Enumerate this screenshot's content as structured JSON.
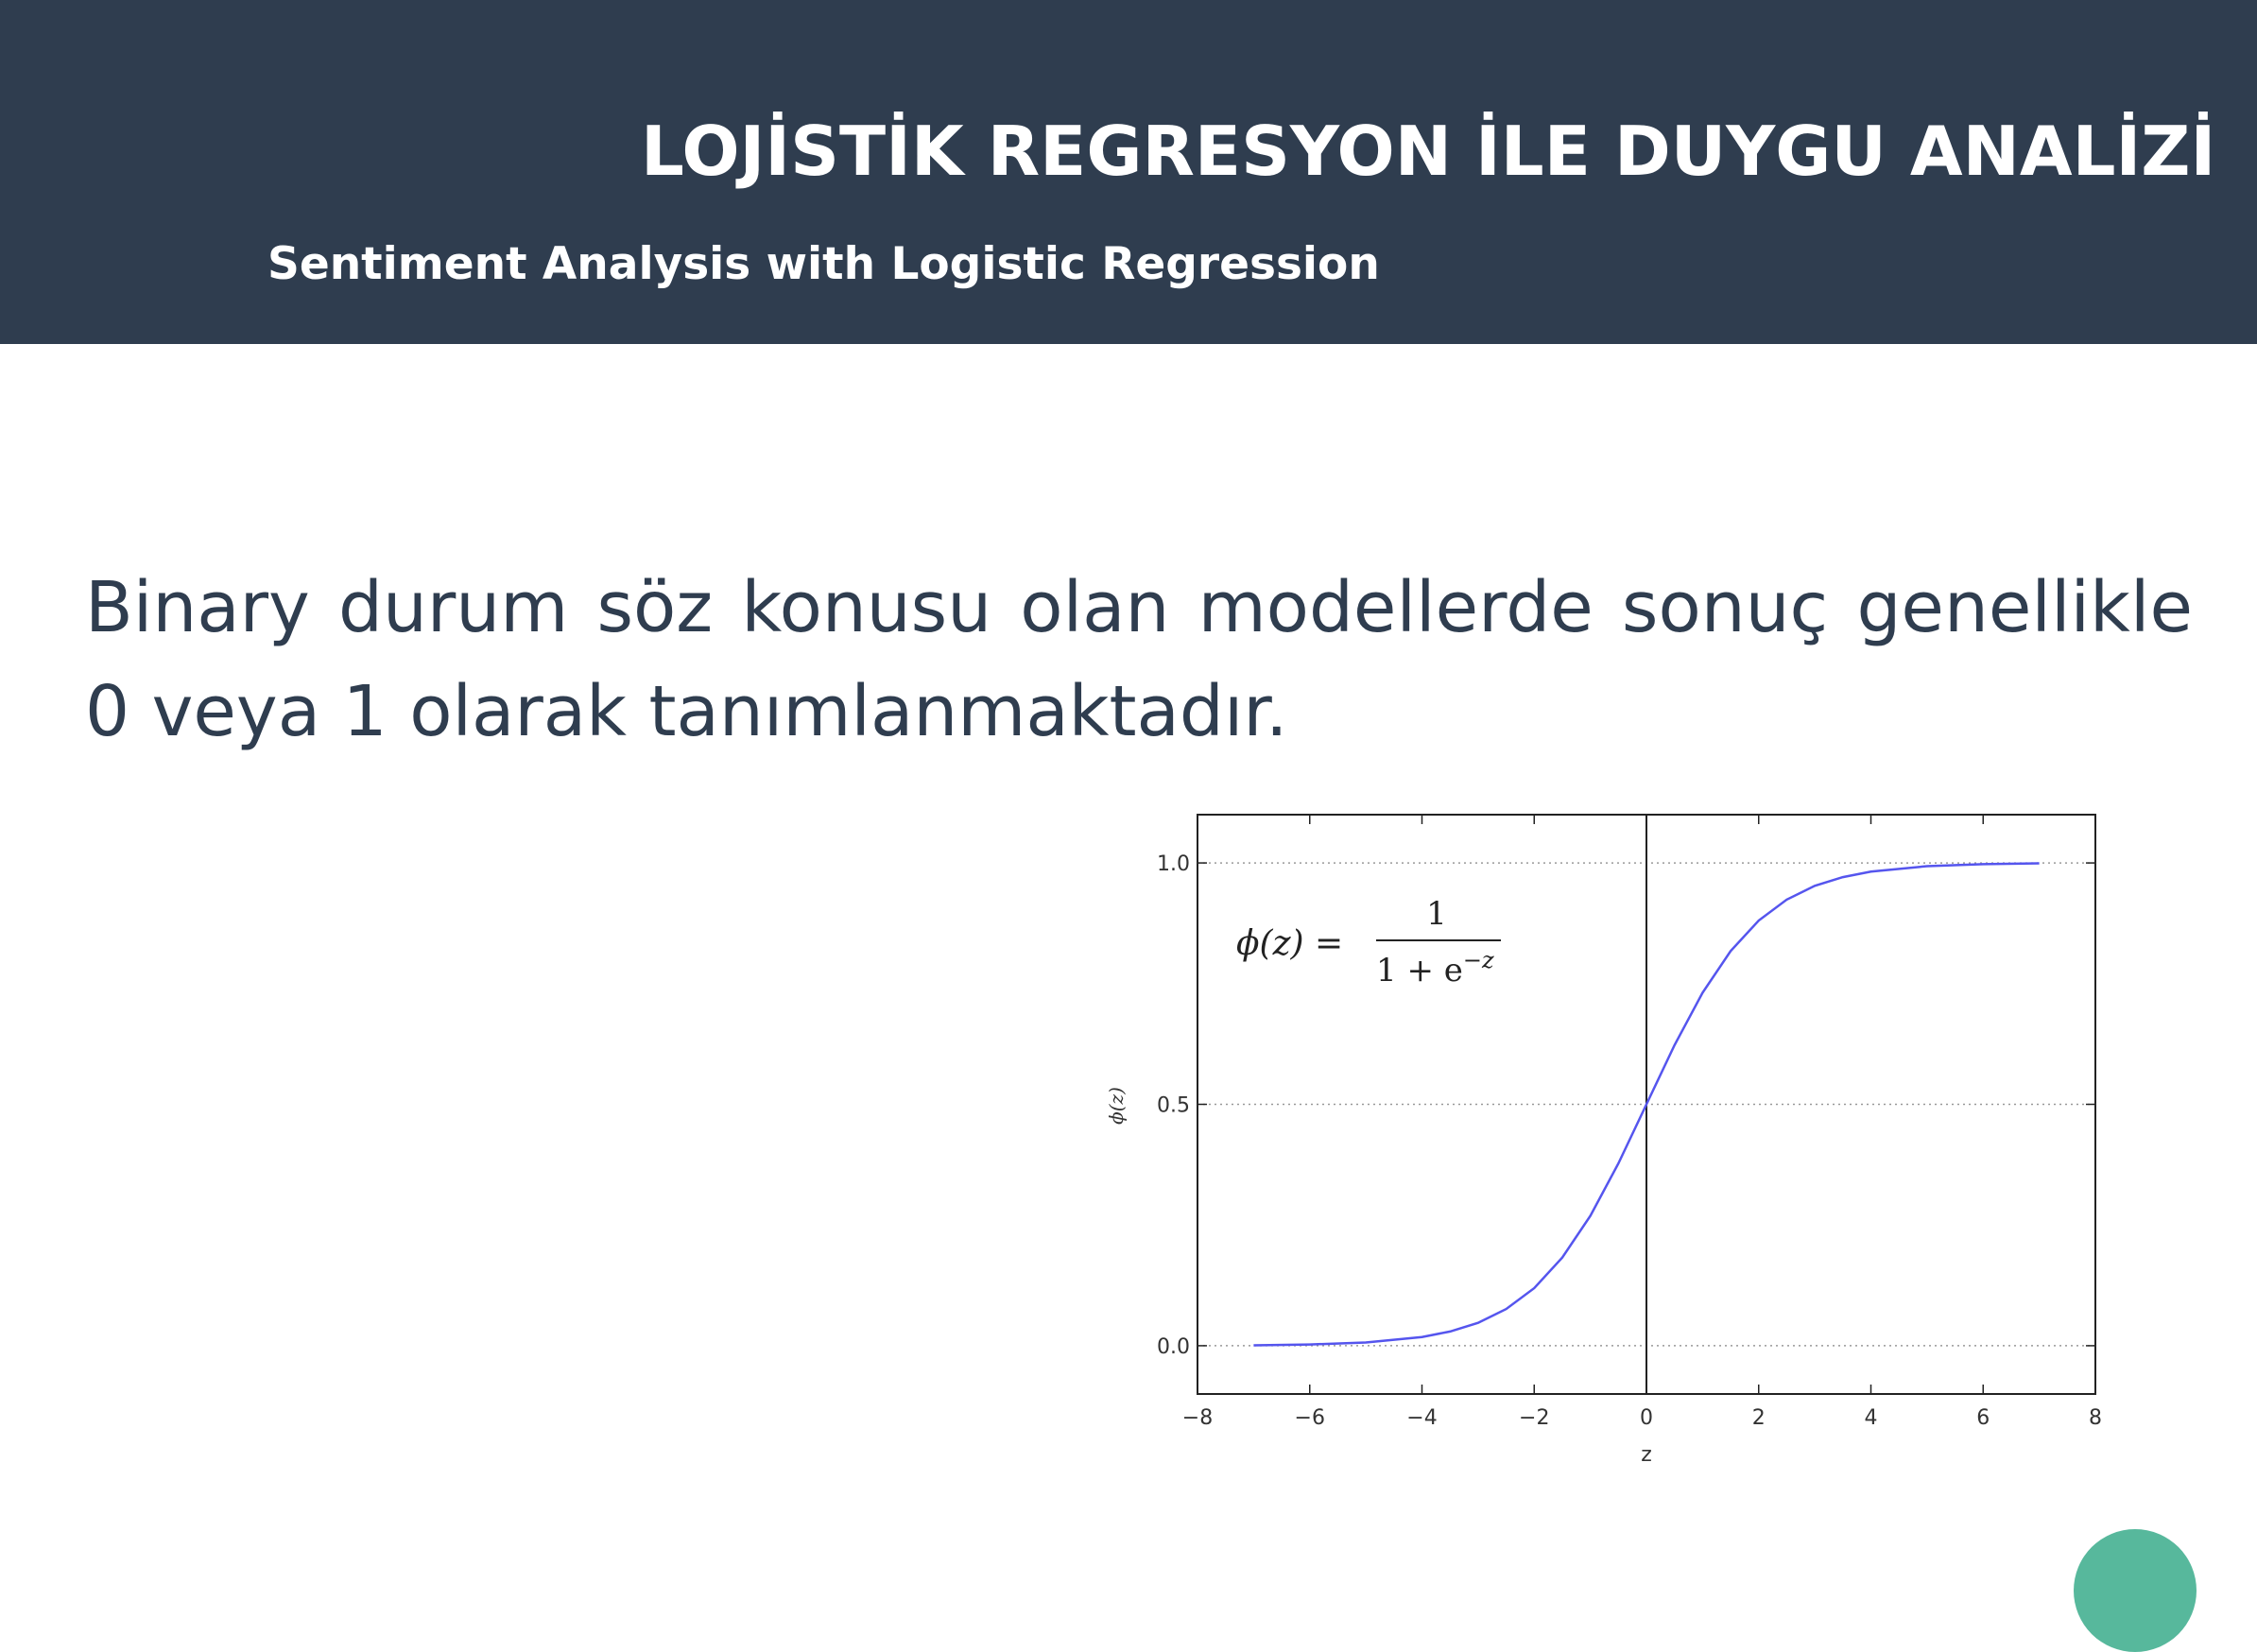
{
  "header": {
    "title": "LOJİSTİK REGRESYON İLE DUYGU ANALİZİ",
    "subtitle": "Sentiment Analysis with Logistic Regression"
  },
  "body": {
    "text": "Binary durum söz konusu olan modellerde sonuç genellikle 0 veya 1 olarak tanımlanmaktadır."
  },
  "colors": {
    "header_bg": "#2f3d4f",
    "text": "#2f3d4f",
    "curve": "#5555ee",
    "accent_circle": "#57b89c"
  },
  "chart_data": {
    "type": "line",
    "function": "sigmoid",
    "series": [
      {
        "x": [
          -7,
          -6,
          -5,
          -4,
          -3.5,
          -3,
          -2.5,
          -2,
          -1.5,
          -1,
          -0.5,
          0,
          0.5,
          1,
          1.5,
          2,
          2.5,
          3,
          3.5,
          4,
          5,
          6,
          7
        ],
        "values": [
          0.0009,
          0.0025,
          0.0067,
          0.018,
          0.0293,
          0.0474,
          0.0759,
          0.1192,
          0.1824,
          0.2689,
          0.3775,
          0.5,
          0.6225,
          0.7311,
          0.8176,
          0.8808,
          0.9241,
          0.9526,
          0.9707,
          0.982,
          0.9933,
          0.9975,
          0.9991
        ]
      }
    ],
    "xlabel": "z",
    "ylabel": "ϕ(z)",
    "xlim": [
      -8,
      8
    ],
    "ylim": [
      -0.1,
      1.1
    ],
    "x_ticks": [
      "−8",
      "−6",
      "−4",
      "−2",
      "0",
      "2",
      "4",
      "6",
      "8"
    ],
    "x_tick_values": [
      -8,
      -6,
      -4,
      -2,
      0,
      2,
      4,
      6,
      8
    ],
    "y_ticks": [
      "0.0",
      "0.5",
      "1.0"
    ],
    "y_tick_values": [
      0,
      0.5,
      1
    ],
    "annotation": {
      "lhs": "ϕ(z) =",
      "numerator": "1",
      "denominator": "1 + e",
      "exponent": "−z"
    },
    "grid": "horizontal dotted at y ticks",
    "vertical_line_at_x": 0
  }
}
